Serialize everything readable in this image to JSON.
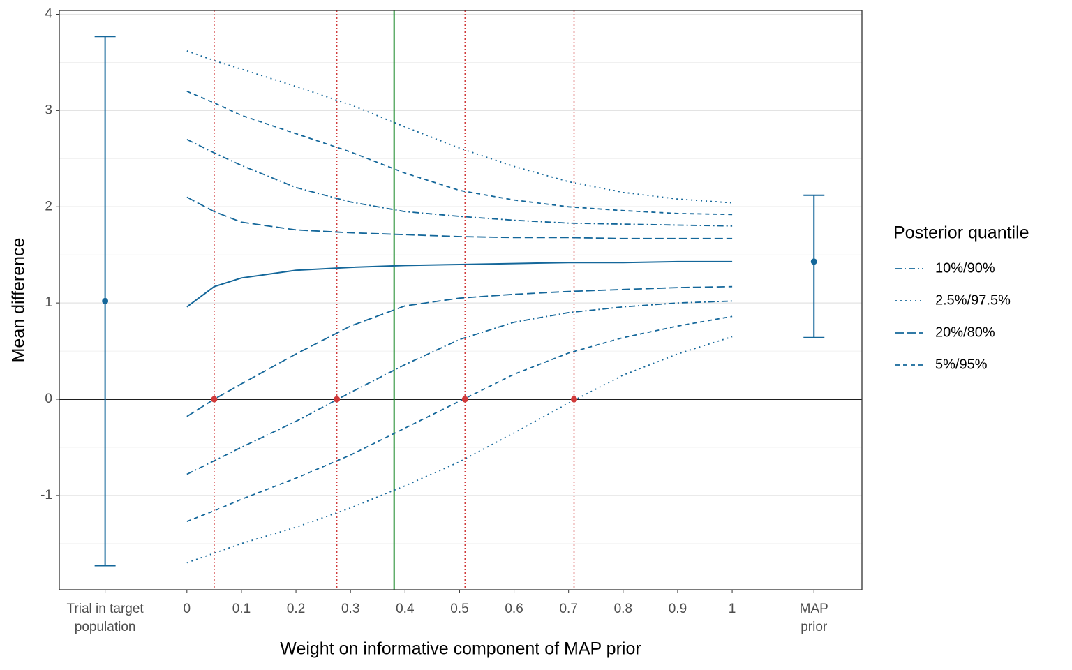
{
  "chart_data": {
    "type": "line",
    "xlabel": "Weight on informative component of MAP prior",
    "ylabel": "Mean difference",
    "legend_title": "Posterior quantile",
    "color": "#14679a",
    "xlim": [
      -0.234,
      1.238
    ],
    "ylim": [
      -1.98,
      4.04
    ],
    "xticks": [
      {
        "value": -0.15,
        "label": "Trial in target\npopulation"
      },
      0,
      0.1,
      0.2,
      0.3,
      0.4,
      0.5,
      0.6,
      0.7,
      0.8,
      0.9,
      1,
      {
        "value": 1.15,
        "label": "MAP\nprior"
      }
    ],
    "yticks": [
      -1,
      0,
      1,
      2,
      3,
      4
    ],
    "yminor": [
      -1.5,
      -0.5,
      0.5,
      1.5,
      2.5,
      3.5
    ],
    "grid": true,
    "x": [
      0,
      0.05,
      0.1,
      0.2,
      0.3,
      0.4,
      0.5,
      0.6,
      0.7,
      0.8,
      0.9,
      1
    ],
    "median": [
      0.96,
      1.17,
      1.26,
      1.34,
      1.37,
      1.39,
      1.4,
      1.41,
      1.42,
      1.42,
      1.43,
      1.43
    ],
    "quantiles": [
      {
        "name": "10%/90%",
        "dash": "9,4,2,4",
        "upper": [
          2.7,
          2.56,
          2.43,
          2.2,
          2.05,
          1.95,
          1.9,
          1.86,
          1.83,
          1.82,
          1.81,
          1.8
        ],
        "lower": [
          -0.78,
          -0.64,
          -0.5,
          -0.23,
          0.07,
          0.36,
          0.62,
          0.8,
          0.9,
          0.96,
          1.0,
          1.02
        ]
      },
      {
        "name": "2.5%/97.5%",
        "dash": "2,5",
        "upper": [
          3.62,
          3.52,
          3.43,
          3.25,
          3.06,
          2.83,
          2.61,
          2.42,
          2.26,
          2.15,
          2.08,
          2.04
        ],
        "lower": [
          -1.7,
          -1.6,
          -1.5,
          -1.33,
          -1.13,
          -0.9,
          -0.65,
          -0.35,
          -0.04,
          0.25,
          0.47,
          0.65
        ]
      },
      {
        "name": "20%/80%",
        "dash": "12,5",
        "upper": [
          2.1,
          1.95,
          1.84,
          1.76,
          1.73,
          1.71,
          1.69,
          1.68,
          1.68,
          1.67,
          1.67,
          1.67
        ],
        "lower": [
          -0.18,
          0.0,
          0.16,
          0.47,
          0.76,
          0.97,
          1.05,
          1.09,
          1.12,
          1.14,
          1.16,
          1.17
        ]
      },
      {
        "name": "5%/95%",
        "dash": "6,5",
        "upper": [
          3.2,
          3.08,
          2.95,
          2.76,
          2.57,
          2.35,
          2.17,
          2.07,
          2.0,
          1.96,
          1.93,
          1.92
        ],
        "lower": [
          -1.27,
          -1.16,
          -1.04,
          -0.82,
          -0.58,
          -0.3,
          -0.02,
          0.26,
          0.48,
          0.64,
          0.76,
          0.86
        ]
      }
    ],
    "intervals": [
      {
        "x": -0.15,
        "mean": 1.02,
        "low": -1.73,
        "high": 3.77
      },
      {
        "x": 1.15,
        "mean": 1.43,
        "low": 0.64,
        "high": 2.12
      }
    ],
    "zero_line": 0,
    "crossings": [
      0.05,
      0.275,
      0.51,
      0.71
    ],
    "crossing_color": "#d03a3a",
    "selected_weight": 0.38,
    "selected_color": "#1a8a2a"
  }
}
